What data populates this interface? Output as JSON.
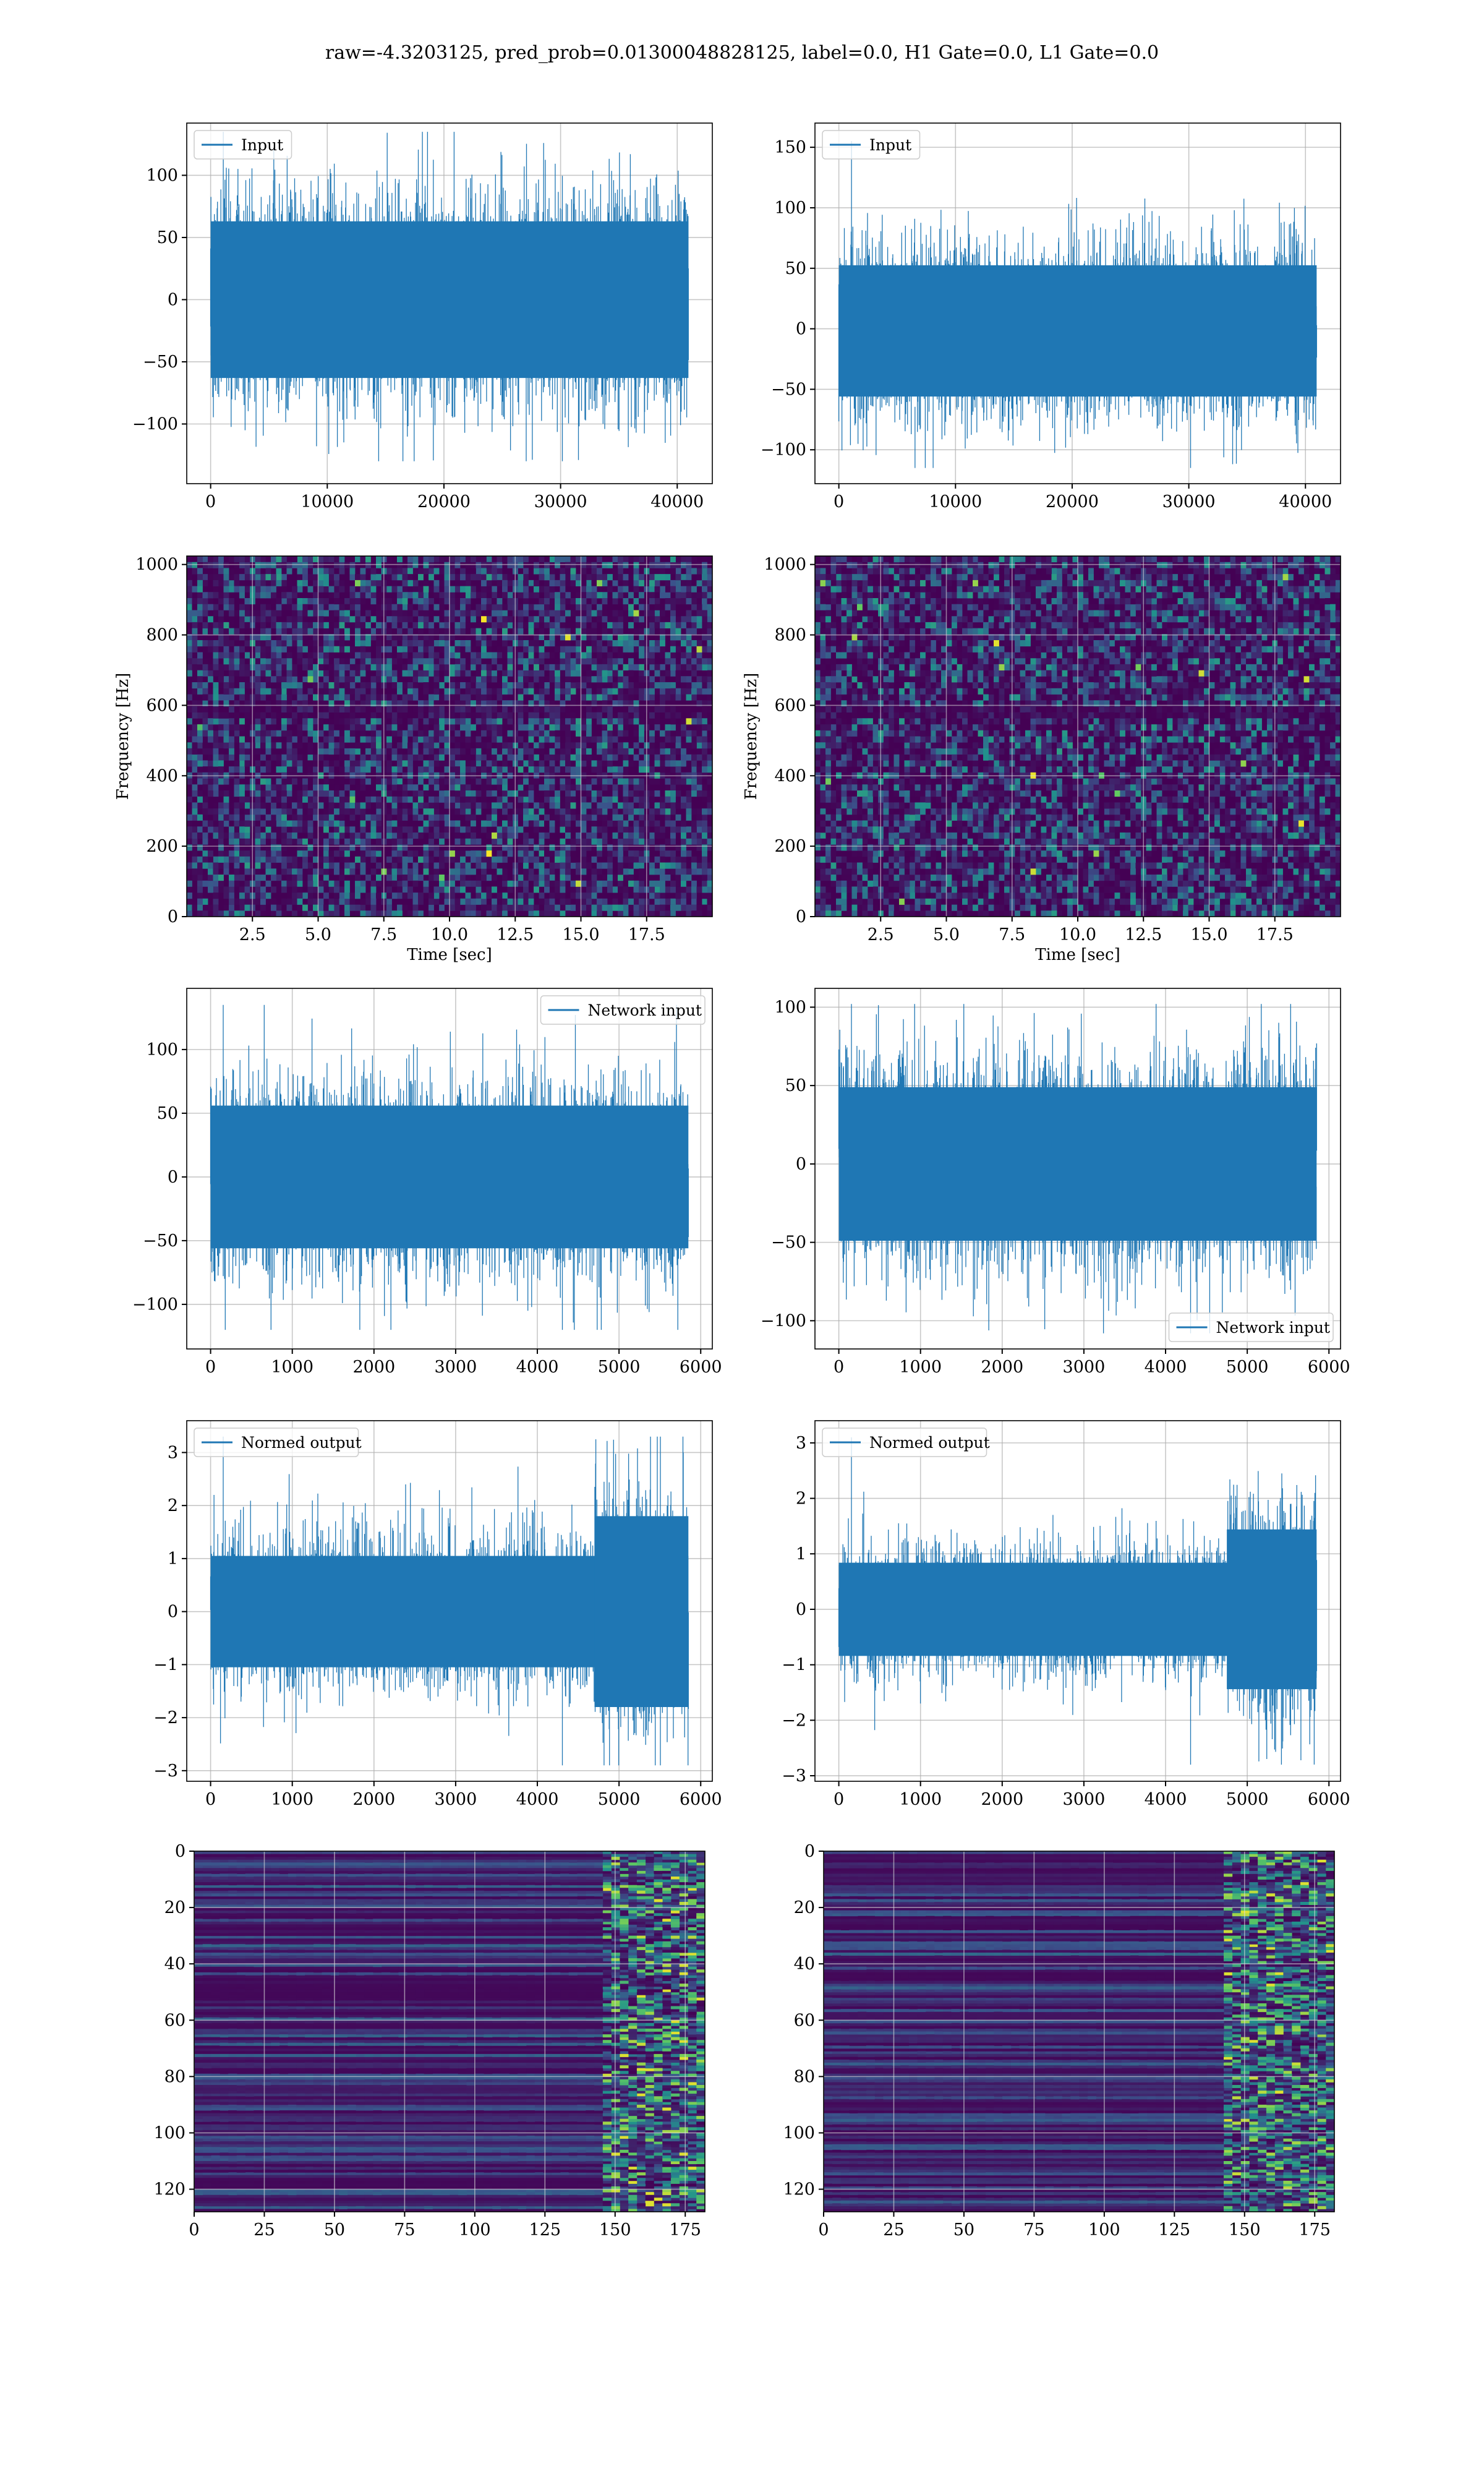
{
  "figure_title": "raw=-4.3203125, pred_prob=0.01300048828125, label=0.0, H1 Gate=0.0, L1 Gate=0.0",
  "colors": {
    "line": "#1f77b4",
    "grid": "#b0b0b0",
    "viridis_dark": "#440154",
    "viridis_mid": "#21918c",
    "viridis_bright": "#fde725"
  },
  "chart_data": [
    {
      "id": "input-h1",
      "type": "line",
      "title": "",
      "xlabel": "",
      "ylabel": "",
      "series": [
        {
          "name": "Input",
          "n_samples": 40960,
          "min": -130,
          "max": 135,
          "typical_envelope": [
            -90,
            90
          ]
        }
      ],
      "xlim": [
        -2048,
        43008
      ],
      "ylim": [
        -148,
        142
      ],
      "xticks": [
        0,
        10000,
        20000,
        30000,
        40000
      ],
      "xticklabels": [
        "0",
        "10000",
        "20000",
        "30000",
        "40000"
      ],
      "yticks": [
        -100,
        -50,
        0,
        50,
        100
      ],
      "yticklabels": [
        "−100",
        "−50",
        "0",
        "50",
        "100"
      ],
      "legend": "upper left",
      "grid": true
    },
    {
      "id": "input-l1",
      "type": "line",
      "title": "",
      "xlabel": "",
      "ylabel": "",
      "series": [
        {
          "name": "Input",
          "n_samples": 40960,
          "min": -115,
          "max": 155,
          "typical_envelope": [
            -80,
            75
          ]
        }
      ],
      "xlim": [
        -2048,
        43008
      ],
      "ylim": [
        -128,
        170
      ],
      "xticks": [
        0,
        10000,
        20000,
        30000,
        40000
      ],
      "xticklabels": [
        "0",
        "10000",
        "20000",
        "30000",
        "40000"
      ],
      "yticks": [
        -100,
        -50,
        0,
        50,
        100,
        150
      ],
      "yticklabels": [
        "−100",
        "−50",
        "0",
        "50",
        "100",
        "150"
      ],
      "legend": "upper left",
      "grid": true
    },
    {
      "id": "spec-h1",
      "type": "heatmap",
      "title": "",
      "xlabel": "Time [sec]",
      "ylabel": "Frequency [Hz]",
      "xlim": [
        0,
        20
      ],
      "ylim": [
        0,
        1024
      ],
      "xticks": [
        2.5,
        5.0,
        7.5,
        10.0,
        12.5,
        15.0,
        17.5
      ],
      "xticklabels": [
        "2.5",
        "5.0",
        "7.5",
        "10.0",
        "12.5",
        "15.0",
        "17.5"
      ],
      "yticks": [
        0,
        200,
        400,
        600,
        800,
        1000
      ],
      "yticklabels": [
        "0",
        "200",
        "400",
        "600",
        "800",
        "1000"
      ],
      "colormap": "viridis",
      "grid": true
    },
    {
      "id": "spec-l1",
      "type": "heatmap",
      "title": "",
      "xlabel": "Time [sec]",
      "ylabel": "Frequency [Hz]",
      "xlim": [
        0,
        20
      ],
      "ylim": [
        0,
        1024
      ],
      "xticks": [
        2.5,
        5.0,
        7.5,
        10.0,
        12.5,
        15.0,
        17.5
      ],
      "xticklabels": [
        "2.5",
        "5.0",
        "7.5",
        "10.0",
        "12.5",
        "15.0",
        "17.5"
      ],
      "yticks": [
        0,
        200,
        400,
        600,
        800,
        1000
      ],
      "yticklabels": [
        "0",
        "200",
        "400",
        "600",
        "800",
        "1000"
      ],
      "colormap": "viridis",
      "grid": true
    },
    {
      "id": "netin-h1",
      "type": "line",
      "title": "",
      "xlabel": "",
      "ylabel": "",
      "series": [
        {
          "name": "Network input",
          "n_samples": 5850,
          "min": -120,
          "max": 135,
          "typical_envelope": [
            -80,
            80
          ]
        }
      ],
      "xlim": [
        -292,
        6142
      ],
      "ylim": [
        -135,
        148
      ],
      "xticks": [
        0,
        1000,
        2000,
        3000,
        4000,
        5000,
        6000
      ],
      "xticklabels": [
        "0",
        "1000",
        "2000",
        "3000",
        "4000",
        "5000",
        "6000"
      ],
      "yticks": [
        -100,
        -50,
        0,
        50,
        100
      ],
      "yticklabels": [
        "−100",
        "−50",
        "0",
        "50",
        "100"
      ],
      "legend": "upper right",
      "grid": true
    },
    {
      "id": "netin-l1",
      "type": "line",
      "title": "",
      "xlabel": "",
      "ylabel": "",
      "series": [
        {
          "name": "Network input",
          "n_samples": 5850,
          "min": -108,
          "max": 102,
          "typical_envelope": [
            -70,
            70
          ]
        }
      ],
      "xlim": [
        -292,
        6142
      ],
      "ylim": [
        -118,
        112
      ],
      "xticks": [
        0,
        1000,
        2000,
        3000,
        4000,
        5000,
        6000
      ],
      "xticklabels": [
        "0",
        "1000",
        "2000",
        "3000",
        "4000",
        "5000",
        "6000"
      ],
      "yticks": [
        -100,
        -50,
        0,
        50,
        100
      ],
      "yticklabels": [
        "−100",
        "−50",
        "0",
        "50",
        "100"
      ],
      "legend": "lower right",
      "grid": true
    },
    {
      "id": "normed-h1",
      "type": "line",
      "title": "",
      "xlabel": "",
      "ylabel": "",
      "series": [
        {
          "name": "Normed output",
          "n_samples": 5850,
          "min": -2.9,
          "max": 3.3,
          "typical_envelope": [
            -1.5,
            1.5
          ],
          "burst_region": [
            4700,
            5850
          ]
        }
      ],
      "xlim": [
        -292,
        6142
      ],
      "ylim": [
        -3.2,
        3.6
      ],
      "xticks": [
        0,
        1000,
        2000,
        3000,
        4000,
        5000,
        6000
      ],
      "xticklabels": [
        "0",
        "1000",
        "2000",
        "3000",
        "4000",
        "5000",
        "6000"
      ],
      "yticks": [
        -3,
        -2,
        -1,
        0,
        1,
        2,
        3
      ],
      "yticklabels": [
        "−3",
        "−2",
        "−1",
        "0",
        "1",
        "2",
        "3"
      ],
      "legend": "upper left",
      "grid": true
    },
    {
      "id": "normed-l1",
      "type": "line",
      "title": "",
      "xlabel": "",
      "ylabel": "",
      "series": [
        {
          "name": "Normed output",
          "n_samples": 5850,
          "min": -2.8,
          "max": 3.1,
          "typical_envelope": [
            -1.2,
            1.2
          ],
          "burst_region": [
            4750,
            5850
          ]
        }
      ],
      "xlim": [
        -292,
        6142
      ],
      "ylim": [
        -3.1,
        3.4
      ],
      "xticks": [
        0,
        1000,
        2000,
        3000,
        4000,
        5000,
        6000
      ],
      "xticklabels": [
        "0",
        "1000",
        "2000",
        "3000",
        "4000",
        "5000",
        "6000"
      ],
      "yticks": [
        -3,
        -2,
        -1,
        0,
        1,
        2,
        3
      ],
      "yticklabels": [
        "−3",
        "−2",
        "−1",
        "0",
        "1",
        "2",
        "3"
      ],
      "legend": "upper left",
      "grid": true
    },
    {
      "id": "feat-h1",
      "type": "heatmap",
      "title": "",
      "xlabel": "",
      "ylabel": "",
      "xlim": [
        0,
        182
      ],
      "ylim": [
        128,
        0
      ],
      "rows": 128,
      "cols": 182,
      "xticks": [
        0,
        25,
        50,
        75,
        100,
        125,
        150,
        175
      ],
      "xticklabels": [
        "0",
        "25",
        "50",
        "75",
        "100",
        "125",
        "150",
        "175"
      ],
      "yticks": [
        0,
        20,
        40,
        60,
        80,
        100,
        120
      ],
      "yticklabels": [
        "0",
        "20",
        "40",
        "60",
        "80",
        "100",
        "120"
      ],
      "colormap": "viridis",
      "grid": true,
      "active_columns": [
        145,
        182
      ]
    },
    {
      "id": "feat-l1",
      "type": "heatmap",
      "title": "",
      "xlabel": "",
      "ylabel": "",
      "xlim": [
        0,
        182
      ],
      "ylim": [
        128,
        0
      ],
      "rows": 128,
      "cols": 182,
      "xticks": [
        0,
        25,
        50,
        75,
        100,
        125,
        150,
        175
      ],
      "xticklabels": [
        "0",
        "25",
        "50",
        "75",
        "100",
        "125",
        "150",
        "175"
      ],
      "yticks": [
        0,
        20,
        40,
        60,
        80,
        100,
        120
      ],
      "yticklabels": [
        "0",
        "20",
        "40",
        "60",
        "80",
        "100",
        "120"
      ],
      "colormap": "viridis",
      "grid": true,
      "active_columns": [
        140,
        182
      ]
    }
  ]
}
